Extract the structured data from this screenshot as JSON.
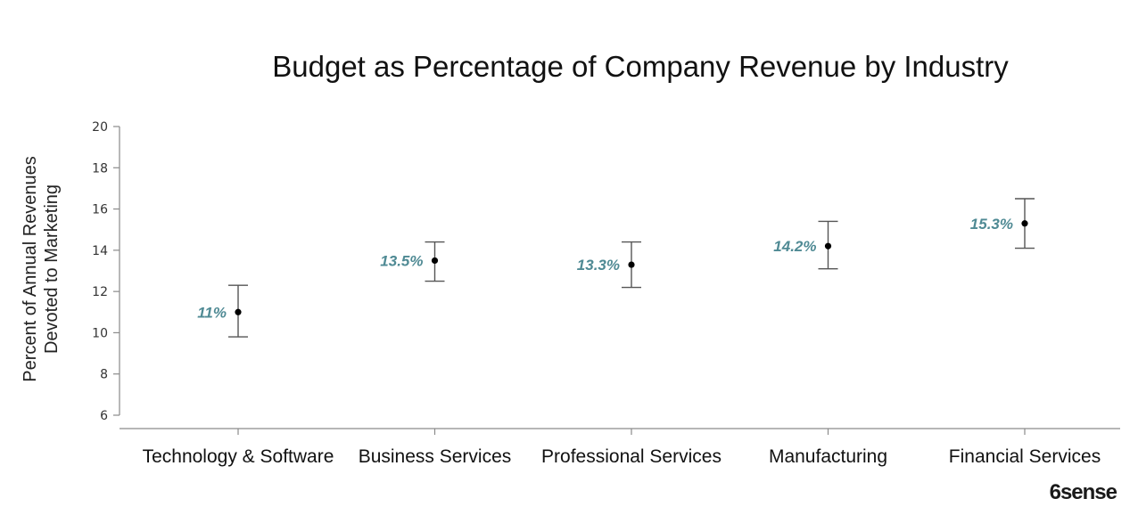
{
  "chart_data": {
    "type": "scatter",
    "title": "Budget as Percentage of Company Revenue by Industry",
    "ylabel": [
      "Percent of Annual Revenues",
      "Devoted to Marketing"
    ],
    "xlabel": "",
    "ylim": [
      6,
      20
    ],
    "yticks": [
      6,
      8,
      10,
      12,
      14,
      16,
      18,
      20
    ],
    "ytick_labels": [
      "6",
      "8",
      "10",
      "12",
      "14",
      "16",
      "18",
      "20"
    ],
    "categories": [
      "Technology & Software",
      "Business Services",
      "Professional Services",
      "Manufacturing",
      "Financial Services"
    ],
    "values": [
      11,
      13.5,
      13.3,
      14.2,
      15.3
    ],
    "error_low": [
      9.8,
      12.5,
      12.2,
      13.1,
      14.1
    ],
    "error_high": [
      12.3,
      14.4,
      14.4,
      15.4,
      16.5
    ],
    "data_labels": [
      "11%",
      "13.5%",
      "13.3%",
      "14.2%",
      "15.3%"
    ],
    "label_color": "#4f8a94",
    "point_color": "#000000",
    "grid": false
  },
  "brand": {
    "logo_text": "6sense"
  }
}
